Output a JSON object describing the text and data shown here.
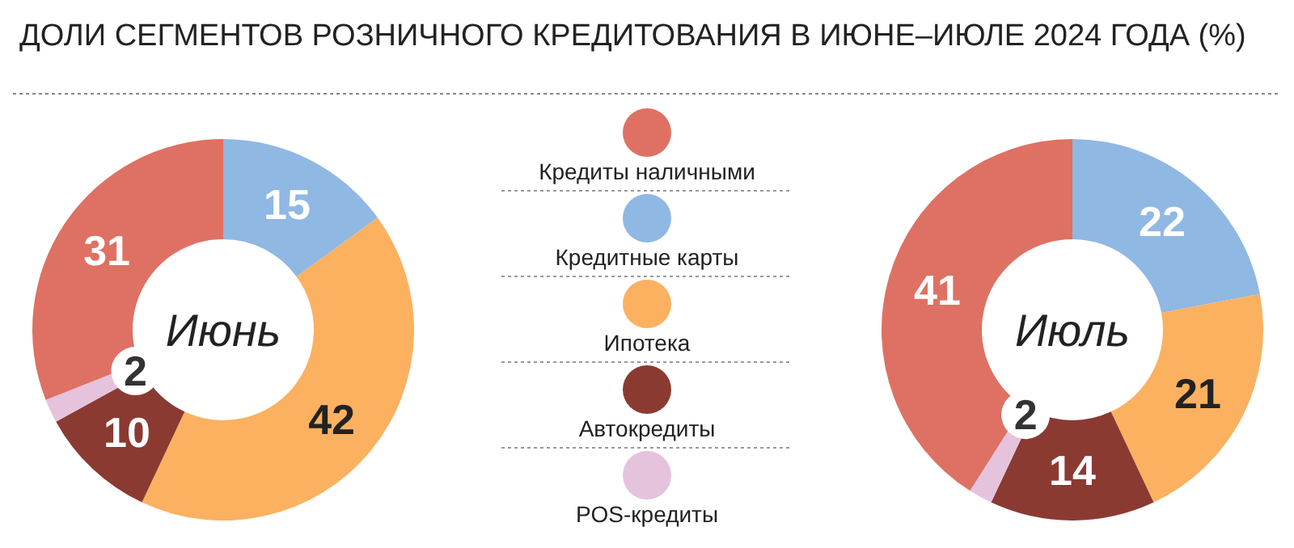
{
  "chart_data": [
    {
      "type": "donut",
      "title": "ДОЛИ СЕГМЕНТОВ РОЗНИЧНОГО КРЕДИТОВАНИЯ В ИЮНЕ–ИЮЛЕ 2024 ГОДА (%)",
      "annotations": [
        "Июнь"
      ],
      "categories": [
        "Кредиты наличными",
        "Кредитные карты",
        "Ипотека",
        "Автокредиты",
        "POS-кредиты"
      ],
      "values": [
        31,
        15,
        42,
        10,
        2
      ],
      "colors": [
        "#de7163",
        "#8fb8e3",
        "#fbb160",
        "#8b3a32",
        "#e5c3dd"
      ],
      "data_labels": true,
      "legend": "right"
    },
    {
      "type": "donut",
      "annotations": [
        "Июль"
      ],
      "categories": [
        null,
        null,
        null,
        null,
        null
      ],
      "values": [
        41,
        22,
        21,
        14,
        2
      ],
      "colors": [
        "#de7163",
        "#8fb8e3",
        "#fbb160",
        "#8b3a32",
        "#e5c3dd"
      ],
      "data_labels": true
    }
  ]
}
